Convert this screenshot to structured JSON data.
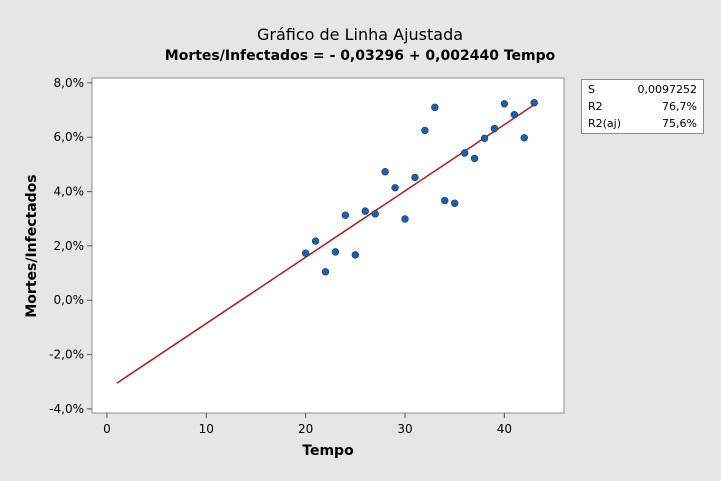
{
  "colors": {
    "background": "#e6e6e6",
    "plot_area": "#ffffff",
    "point": "#1f5fa8",
    "fit_line": "#a52a2a"
  },
  "stats": [
    {
      "label": "S",
      "value": "0,0097252"
    },
    {
      "label": "R2",
      "value": "76,7%"
    },
    {
      "label": "R2(aj)",
      "value": "75,6%"
    }
  ],
  "chart_data": {
    "type": "scatter",
    "title": "Gráfico de Linha Ajustada",
    "subtitle": "Mortes/Infectados = - 0,03296 + 0,002440 Tempo",
    "xlabel": "Tempo",
    "ylabel": "Mortes/Infectados",
    "xlim": [
      -1.5,
      46
    ],
    "ylim": [
      -0.0415,
      0.0818
    ],
    "x_ticks": [
      0,
      10,
      20,
      30,
      40
    ],
    "x_tick_labels": [
      "0",
      "10",
      "20",
      "30",
      "40"
    ],
    "y_ticks": [
      -0.04,
      -0.02,
      0.0,
      0.02,
      0.04,
      0.06,
      0.08
    ],
    "y_tick_labels": [
      "-4,0%",
      "-2,0%",
      "0,0%",
      "2,0%",
      "4,0%",
      "6,0%",
      "8,0%"
    ],
    "grid": false,
    "fit_line": {
      "intercept": -0.03296,
      "slope": 0.00244,
      "x_range": [
        1,
        43
      ]
    },
    "points": [
      {
        "x": 20,
        "y": 0.0173
      },
      {
        "x": 21,
        "y": 0.0218
      },
      {
        "x": 22,
        "y": 0.0105
      },
      {
        "x": 23,
        "y": 0.0178
      },
      {
        "x": 24,
        "y": 0.0313
      },
      {
        "x": 25,
        "y": 0.0167
      },
      {
        "x": 26,
        "y": 0.0328
      },
      {
        "x": 27,
        "y": 0.0318
      },
      {
        "x": 28,
        "y": 0.0473
      },
      {
        "x": 29,
        "y": 0.0414
      },
      {
        "x": 30,
        "y": 0.0299
      },
      {
        "x": 31,
        "y": 0.0452
      },
      {
        "x": 32,
        "y": 0.0625
      },
      {
        "x": 33,
        "y": 0.071
      },
      {
        "x": 34,
        "y": 0.0367
      },
      {
        "x": 35,
        "y": 0.0357
      },
      {
        "x": 36,
        "y": 0.0542
      },
      {
        "x": 37,
        "y": 0.0522
      },
      {
        "x": 38,
        "y": 0.0596
      },
      {
        "x": 39,
        "y": 0.0632
      },
      {
        "x": 40,
        "y": 0.0723
      },
      {
        "x": 41,
        "y": 0.0683
      },
      {
        "x": 42,
        "y": 0.0598
      },
      {
        "x": 43,
        "y": 0.0727
      }
    ]
  }
}
